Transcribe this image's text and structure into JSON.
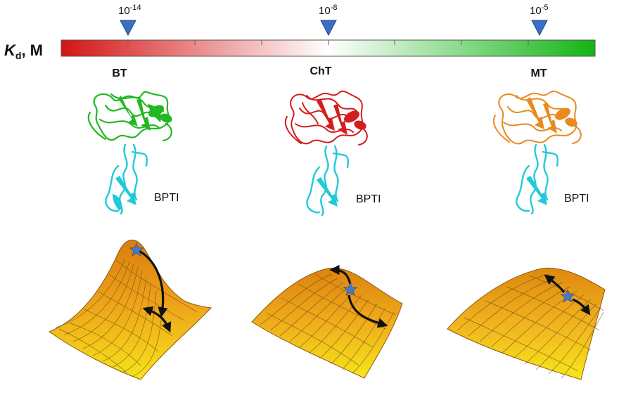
{
  "scale": {
    "axis_label_symbol": "K",
    "axis_label_sub": "d",
    "axis_label_unit": ", M",
    "colors": {
      "low": "#d41414",
      "mid": "#ffffff",
      "high": "#14b414"
    },
    "markers": [
      {
        "base": "10",
        "exponent": "-14",
        "log_kd": -14
      },
      {
        "base": "10",
        "exponent": "-8",
        "log_kd": -8
      },
      {
        "base": "10",
        "exponent": "-5",
        "log_kd": -5
      }
    ],
    "marker_color": "#3a6fc9"
  },
  "complexes": [
    {
      "enzyme": "BT",
      "partner": "BPTI",
      "color": "#22b822"
    },
    {
      "enzyme": "ChT",
      "partner": "BPTI",
      "color": "#d41d1d"
    },
    {
      "enzyme": "MT",
      "partner": "BPTI",
      "color": "#e98a1e"
    }
  ],
  "partner_color": "#22c9d8",
  "landscapes": [
    {
      "complex": "BT",
      "shape": "sharp peak"
    },
    {
      "complex": "ChT",
      "shape": "moderate peak"
    },
    {
      "complex": "MT",
      "shape": "flat dome"
    }
  ],
  "landscape_colors": {
    "top": "#e58a10",
    "bottom": "#f5e616",
    "grid": "#6a4a10",
    "star": "#4a78c8",
    "arrow": "#111111"
  }
}
